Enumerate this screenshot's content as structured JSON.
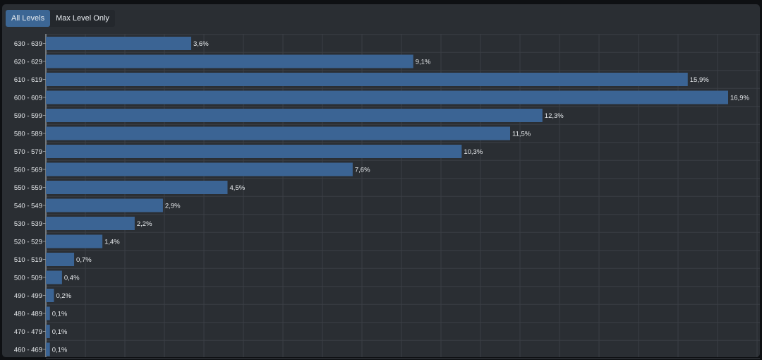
{
  "tabs": [
    {
      "label": "All Levels",
      "active": true
    },
    {
      "label": "Max Level Only",
      "active": false
    }
  ],
  "colors": {
    "bar": "#3b6494",
    "background": "#2a2e33",
    "text": "#e6e9ec",
    "grid": "#3a3f45"
  },
  "chart_data": {
    "type": "bar",
    "orientation": "horizontal",
    "grid": true,
    "categories": [
      "630 - 639",
      "620 - 629",
      "610 - 619",
      "600 - 609",
      "590 - 599",
      "580 - 589",
      "570 - 579",
      "560 - 569",
      "550 - 559",
      "540 - 549",
      "530 - 539",
      "520 - 529",
      "510 - 519",
      "500 - 509",
      "490 - 499",
      "480 - 489",
      "470 - 479",
      "460 - 469"
    ],
    "values": [
      3.6,
      9.1,
      15.9,
      16.9,
      12.3,
      11.5,
      10.3,
      7.6,
      4.5,
      2.9,
      2.2,
      1.4,
      0.7,
      0.4,
      0.2,
      0.1,
      0.1,
      0.1
    ],
    "value_labels": [
      "3,6%",
      "9,1%",
      "15,9%",
      "16,9%",
      "12,3%",
      "11,5%",
      "10,3%",
      "7,6%",
      "4,5%",
      "2,9%",
      "2,2%",
      "1,4%",
      "0,7%",
      "0,4%",
      "0,2%",
      "0,1%",
      "0,1%",
      "0,1%"
    ],
    "xlim": [
      0,
      16.9
    ]
  }
}
